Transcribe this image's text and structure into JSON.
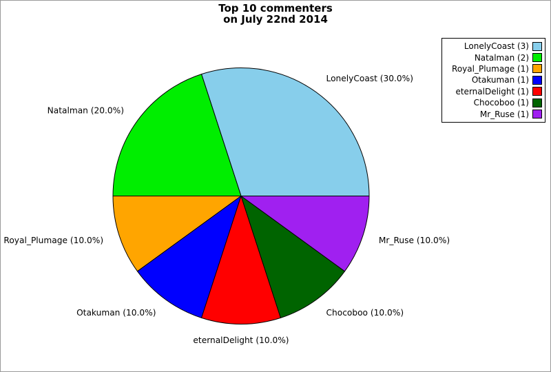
{
  "title": {
    "line1": "Top 10 commenters",
    "line2": "on July 22nd 2014"
  },
  "chart_data": {
    "type": "pie",
    "title": "Top 10 commenters on July 22nd 2014",
    "start_angle_deg": 0,
    "direction": "counterclockwise",
    "legend_position": "top-right",
    "background_color": "#ffffff",
    "edge_color": "#000000",
    "slices": [
      {
        "label": "LonelyCoast",
        "count": 3,
        "percent": 30.0,
        "color": "#87CEEB",
        "slice_label": "LonelyCoast (30.0%)",
        "legend_label": "LonelyCoast (3)"
      },
      {
        "label": "Natalman",
        "count": 2,
        "percent": 20.0,
        "color": "#00EE00",
        "slice_label": "Natalman (20.0%)",
        "legend_label": "Natalman (2)"
      },
      {
        "label": "Royal_Plumage",
        "count": 1,
        "percent": 10.0,
        "color": "#FFA500",
        "slice_label": "Royal_Plumage (10.0%)",
        "legend_label": "Royal_Plumage (1)"
      },
      {
        "label": "Otakuman",
        "count": 1,
        "percent": 10.0,
        "color": "#0000FF",
        "slice_label": "Otakuman (10.0%)",
        "legend_label": "Otakuman (1)"
      },
      {
        "label": "eternalDelight",
        "count": 1,
        "percent": 10.0,
        "color": "#FF0000",
        "slice_label": "eternalDelight (10.0%)",
        "legend_label": "eternalDelight (1)"
      },
      {
        "label": "Chocoboo",
        "count": 1,
        "percent": 10.0,
        "color": "#006400",
        "slice_label": "Chocoboo (10.0%)",
        "legend_label": "Chocoboo (1)"
      },
      {
        "label": "Mr_Ruse",
        "count": 1,
        "percent": 10.0,
        "color": "#A020F0",
        "slice_label": "Mr_Ruse (10.0%)",
        "legend_label": "Mr_Ruse (1)"
      }
    ]
  }
}
